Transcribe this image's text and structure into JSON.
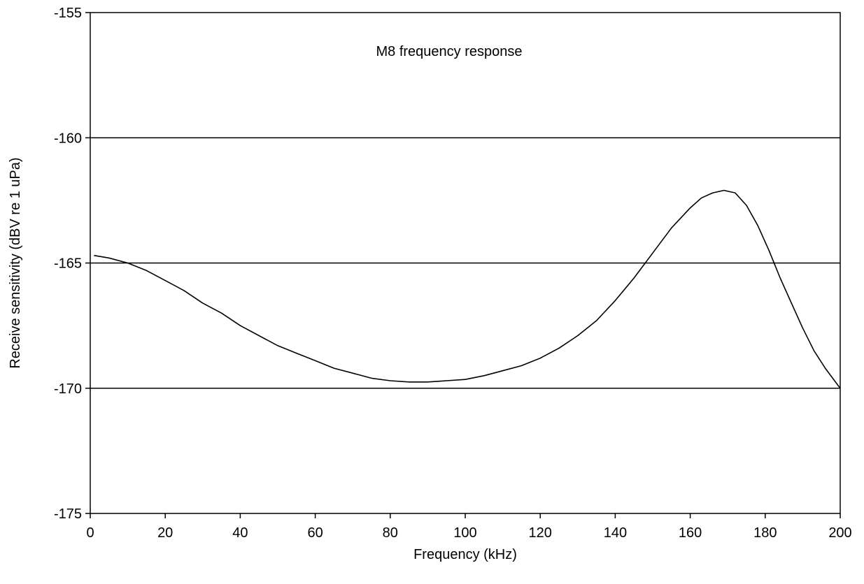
{
  "chart_data": {
    "type": "line",
    "title": "M8 frequency response",
    "xlabel": "Frequency (kHz)",
    "ylabel": "Receive sensitivity (dBV re 1 uPa)",
    "xlim": [
      0,
      200
    ],
    "ylim": [
      -175,
      -155
    ],
    "xticks": [
      0,
      20,
      40,
      60,
      80,
      100,
      120,
      140,
      160,
      180,
      200
    ],
    "yticks": [
      -175,
      -170,
      -165,
      -160,
      -155
    ],
    "xtick_labels": [
      "0",
      "20",
      "40",
      "60",
      "80",
      "100",
      "120",
      "140",
      "160",
      "180",
      "200"
    ],
    "ytick_labels": [
      "-175",
      "-170",
      "-165",
      "-160",
      "-155"
    ],
    "grid": "horizontal",
    "legend": "none",
    "line_color": "#000000",
    "series": [
      {
        "x": [
          1,
          5,
          10,
          15,
          20,
          25,
          30,
          35,
          40,
          45,
          50,
          55,
          60,
          65,
          70,
          75,
          80,
          85,
          90,
          95,
          100,
          105,
          110,
          115,
          120,
          125,
          130,
          135,
          140,
          145,
          150,
          155,
          160,
          163,
          166,
          169,
          172,
          175,
          178,
          181,
          184,
          187,
          190,
          193,
          196,
          199,
          200
        ],
        "y": [
          -164.7,
          -164.8,
          -165.0,
          -165.3,
          -165.7,
          -166.1,
          -166.6,
          -167.0,
          -167.5,
          -167.9,
          -168.3,
          -168.6,
          -168.9,
          -169.2,
          -169.4,
          -169.6,
          -169.7,
          -169.75,
          -169.75,
          -169.7,
          -169.65,
          -169.5,
          -169.3,
          -169.1,
          -168.8,
          -168.4,
          -167.9,
          -167.3,
          -166.5,
          -165.6,
          -164.6,
          -163.6,
          -162.8,
          -162.4,
          -162.2,
          -162.1,
          -162.2,
          -162.7,
          -163.5,
          -164.5,
          -165.6,
          -166.6,
          -167.6,
          -168.5,
          -169.2,
          -169.8,
          -170.0
        ]
      }
    ]
  }
}
